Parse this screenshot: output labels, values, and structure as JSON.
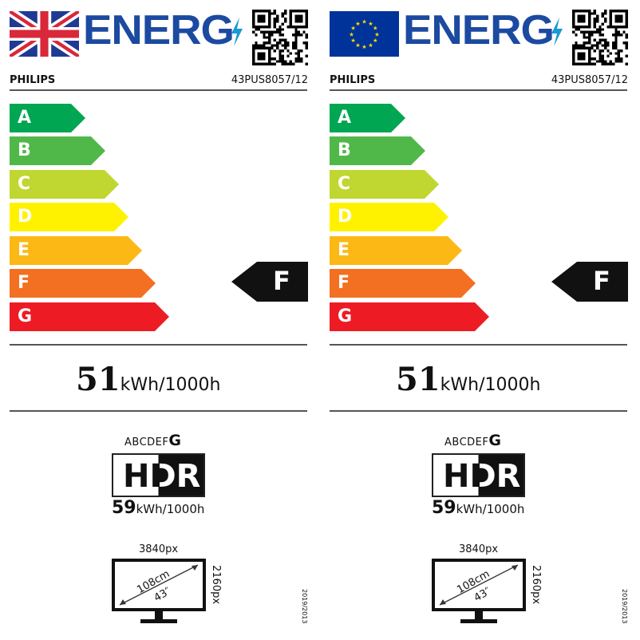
{
  "labels": [
    {
      "region_flag": "uk-flag",
      "title": "ENERG",
      "bolt_icon": "lightning-bolt-icon",
      "qr": "qr-code",
      "brand": "PHILIPS",
      "model": "43PUS8057/12",
      "classes": [
        "A",
        "B",
        "C",
        "D",
        "E",
        "F",
        "G"
      ],
      "rating": "F",
      "sdr_value": "51",
      "sdr_unit": "kWh/1000h",
      "hdr_scale_prefix": "ABCDEF",
      "hdr_scale_class": "G",
      "hdr_logo": "HDR",
      "hdr_value": "59",
      "hdr_unit": "kWh/1000h",
      "h_res": "3840px",
      "v_res": "2160px",
      "diag_cm": "108cm",
      "diag_in": "43″",
      "regulation": "2019/2013"
    },
    {
      "region_flag": "eu-flag",
      "title": "ENERG",
      "bolt_icon": "lightning-bolt-icon",
      "qr": "qr-code",
      "brand": "PHILIPS",
      "model": "43PUS8057/12",
      "classes": [
        "A",
        "B",
        "C",
        "D",
        "E",
        "F",
        "G"
      ],
      "rating": "F",
      "sdr_value": "51",
      "sdr_unit": "kWh/1000h",
      "hdr_scale_prefix": "ABCDEF",
      "hdr_scale_class": "G",
      "hdr_logo": "HDR",
      "hdr_value": "59",
      "hdr_unit": "kWh/1000h",
      "h_res": "3840px",
      "v_res": "2160px",
      "diag_cm": "108cm",
      "diag_in": "43″",
      "regulation": "2019/2013"
    }
  ],
  "class_colors": [
    "#00a651",
    "#50b848",
    "#bfd730",
    "#fff200",
    "#fcb814",
    "#f36f21",
    "#ed1c24"
  ],
  "brand_blue": "#1b4aa0"
}
